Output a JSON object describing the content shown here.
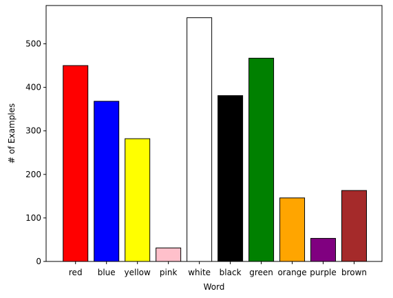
{
  "chart_data": {
    "type": "bar",
    "xlabel": "Word",
    "ylabel": "# of Examples",
    "categories": [
      "red",
      "blue",
      "yellow",
      "pink",
      "white",
      "black",
      "green",
      "orange",
      "purple",
      "brown"
    ],
    "values": [
      450,
      368,
      282,
      31,
      560,
      381,
      467,
      146,
      53,
      163
    ],
    "colors": [
      "#ff0000",
      "#0000ff",
      "#ffff00",
      "#ffc0cb",
      "#ffffff",
      "#000000",
      "#008000",
      "#ffa500",
      "#800080",
      "#a52a2a"
    ],
    "edge_color": "#000000",
    "yticks": [
      0,
      100,
      200,
      300,
      400,
      500
    ],
    "ylim": [
      0,
      588
    ],
    "grid": false,
    "legend": "none"
  }
}
